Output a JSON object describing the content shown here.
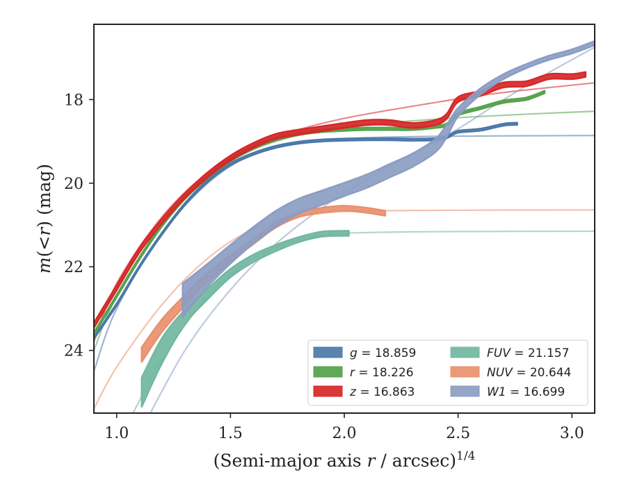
{
  "chart_data": {
    "type": "line",
    "xlabel_main": "(Semi-major axis ",
    "xlabel_var": "r",
    "xlabel_tail": " / arcsec)",
    "xlabel_sup": "1/4",
    "ylabel_m": "m",
    "ylabel_inner": "(<",
    "ylabel_r": "r",
    "ylabel_tail": ") (mag)",
    "xlim": [
      0.9,
      3.1
    ],
    "ylim": [
      25.5,
      16.2
    ],
    "y_inverted": true,
    "xticks": [
      1.0,
      1.5,
      2.0,
      2.5,
      3.0
    ],
    "xtick_labels": [
      "1.0",
      "1.5",
      "2.0",
      "2.5",
      "3.0"
    ],
    "yticks": [
      18,
      20,
      22,
      24
    ],
    "ytick_labels": [
      "18",
      "20",
      "22",
      "24"
    ],
    "grid": false,
    "legend_position": "lower-right",
    "series": [
      {
        "name": "g",
        "legend_var": "g",
        "legend_value": " = 18.859",
        "color": "#4c78a8",
        "band": [
          [
            0.9,
            23.7
          ],
          [
            1.0,
            22.9
          ],
          [
            1.1,
            22.0
          ],
          [
            1.2,
            21.2
          ],
          [
            1.3,
            20.5
          ],
          [
            1.4,
            19.95
          ],
          [
            1.5,
            19.55
          ],
          [
            1.6,
            19.3
          ],
          [
            1.7,
            19.13
          ],
          [
            1.8,
            19.03
          ],
          [
            1.9,
            18.98
          ],
          [
            2.0,
            18.96
          ],
          [
            2.1,
            18.95
          ],
          [
            2.2,
            18.95
          ],
          [
            2.3,
            18.96
          ],
          [
            2.4,
            18.95
          ],
          [
            2.45,
            18.9
          ],
          [
            2.5,
            18.77
          ],
          [
            2.6,
            18.72
          ],
          [
            2.7,
            18.6
          ],
          [
            2.76,
            18.58
          ]
        ],
        "band_width": [
          0.05,
          0.05,
          0.05,
          0.05,
          0.05,
          0.05,
          0.05,
          0.05,
          0.05,
          0.05,
          0.05,
          0.05,
          0.05,
          0.05,
          0.05,
          0.05,
          0.05,
          0.05,
          0.05,
          0.05,
          0.05
        ],
        "model": [
          [
            0.9,
            24.5
          ],
          [
            1.0,
            23.0
          ],
          [
            1.2,
            21.2
          ],
          [
            1.4,
            20.0
          ],
          [
            1.6,
            19.3
          ],
          [
            1.8,
            19.02
          ],
          [
            2.0,
            18.93
          ],
          [
            2.4,
            18.88
          ],
          [
            3.1,
            18.86
          ]
        ]
      },
      {
        "name": "r",
        "legend_var": "r",
        "legend_value": " = 18.226",
        "color": "#54a24b",
        "band": [
          [
            0.9,
            23.6
          ],
          [
            1.0,
            22.7
          ],
          [
            1.1,
            21.8
          ],
          [
            1.2,
            21.0
          ],
          [
            1.3,
            20.35
          ],
          [
            1.4,
            19.85
          ],
          [
            1.5,
            19.45
          ],
          [
            1.6,
            19.15
          ],
          [
            1.7,
            18.95
          ],
          [
            1.8,
            18.82
          ],
          [
            1.9,
            18.75
          ],
          [
            2.0,
            18.72
          ],
          [
            2.1,
            18.7
          ],
          [
            2.2,
            18.7
          ],
          [
            2.3,
            18.7
          ],
          [
            2.4,
            18.65
          ],
          [
            2.45,
            18.6
          ],
          [
            2.5,
            18.35
          ],
          [
            2.6,
            18.2
          ],
          [
            2.7,
            18.05
          ],
          [
            2.8,
            17.98
          ],
          [
            2.88,
            17.82
          ]
        ],
        "band_width": [
          0.06,
          0.06,
          0.06,
          0.06,
          0.06,
          0.06,
          0.06,
          0.06,
          0.06,
          0.06,
          0.06,
          0.06,
          0.06,
          0.06,
          0.06,
          0.06,
          0.06,
          0.06,
          0.06,
          0.06,
          0.06,
          0.06
        ],
        "model": [
          [
            0.9,
            24.0
          ],
          [
            1.0,
            22.7
          ],
          [
            1.2,
            21.0
          ],
          [
            1.4,
            19.85
          ],
          [
            1.6,
            19.2
          ],
          [
            1.8,
            18.85
          ],
          [
            2.0,
            18.65
          ],
          [
            2.4,
            18.47
          ],
          [
            2.8,
            18.35
          ],
          [
            3.1,
            18.28
          ]
        ]
      },
      {
        "name": "z",
        "legend_var": "z",
        "legend_value": " = 16.863",
        "color": "#d62728",
        "band": [
          [
            0.9,
            23.4
          ],
          [
            1.0,
            22.5
          ],
          [
            1.1,
            21.6
          ],
          [
            1.2,
            20.9
          ],
          [
            1.3,
            20.3
          ],
          [
            1.4,
            19.8
          ],
          [
            1.5,
            19.4
          ],
          [
            1.6,
            19.1
          ],
          [
            1.7,
            18.88
          ],
          [
            1.8,
            18.78
          ],
          [
            1.9,
            18.7
          ],
          [
            2.0,
            18.62
          ],
          [
            2.1,
            18.55
          ],
          [
            2.2,
            18.55
          ],
          [
            2.3,
            18.62
          ],
          [
            2.4,
            18.55
          ],
          [
            2.45,
            18.4
          ],
          [
            2.5,
            18.0
          ],
          [
            2.6,
            17.85
          ],
          [
            2.7,
            17.65
          ],
          [
            2.8,
            17.62
          ],
          [
            2.9,
            17.45
          ],
          [
            3.0,
            17.45
          ],
          [
            3.06,
            17.4
          ]
        ],
        "band_width": [
          0.12,
          0.12,
          0.12,
          0.12,
          0.12,
          0.12,
          0.12,
          0.12,
          0.12,
          0.12,
          0.12,
          0.12,
          0.12,
          0.12,
          0.12,
          0.12,
          0.12,
          0.12,
          0.12,
          0.12,
          0.12,
          0.12,
          0.12,
          0.12
        ],
        "model": [
          [
            0.9,
            23.8
          ],
          [
            1.0,
            22.4
          ],
          [
            1.2,
            20.8
          ],
          [
            1.4,
            19.75
          ],
          [
            1.6,
            19.1
          ],
          [
            1.8,
            18.72
          ],
          [
            2.0,
            18.45
          ],
          [
            2.2,
            18.25
          ],
          [
            2.4,
            18.07
          ],
          [
            2.6,
            17.9
          ],
          [
            2.8,
            17.77
          ],
          [
            3.1,
            17.6
          ]
        ]
      },
      {
        "name": "FUV",
        "legend_var": "FUV",
        "legend_value": " = 21.157",
        "color": "#72b7a1",
        "band": [
          [
            1.11,
            25.0
          ],
          [
            1.2,
            24.0
          ],
          [
            1.3,
            23.2
          ],
          [
            1.4,
            22.65
          ],
          [
            1.5,
            22.15
          ],
          [
            1.6,
            21.8
          ],
          [
            1.7,
            21.55
          ],
          [
            1.8,
            21.35
          ],
          [
            1.9,
            21.22
          ],
          [
            2.0,
            21.2
          ],
          [
            2.02,
            21.2
          ]
        ],
        "band_width": [
          0.7,
          0.6,
          0.35,
          0.25,
          0.2,
          0.18,
          0.15,
          0.12,
          0.12,
          0.12,
          0.12
        ],
        "model": [
          [
            1.0,
            26.3
          ],
          [
            1.1,
            25.2
          ],
          [
            1.2,
            24.2
          ],
          [
            1.4,
            22.7
          ],
          [
            1.6,
            21.8
          ],
          [
            1.8,
            21.35
          ],
          [
            2.0,
            21.2
          ],
          [
            2.4,
            21.16
          ],
          [
            3.1,
            21.15
          ]
        ]
      },
      {
        "name": "NUV",
        "legend_var": "NUV",
        "legend_value": " = 20.644",
        "color": "#e8906e",
        "band": [
          [
            1.11,
            24.1
          ],
          [
            1.2,
            23.4
          ],
          [
            1.3,
            22.8
          ],
          [
            1.4,
            22.25
          ],
          [
            1.5,
            21.8
          ],
          [
            1.6,
            21.4
          ],
          [
            1.7,
            21.0
          ],
          [
            1.8,
            20.75
          ],
          [
            1.9,
            20.65
          ],
          [
            2.0,
            20.6
          ],
          [
            2.1,
            20.65
          ],
          [
            2.18,
            20.72
          ]
        ],
        "band_width": [
          0.35,
          0.3,
          0.25,
          0.2,
          0.15,
          0.12,
          0.12,
          0.12,
          0.12,
          0.12,
          0.12,
          0.12
        ],
        "model": [
          [
            0.9,
            25.4
          ],
          [
            1.0,
            24.4
          ],
          [
            1.2,
            22.9
          ],
          [
            1.4,
            21.8
          ],
          [
            1.6,
            21.1
          ],
          [
            1.8,
            20.8
          ],
          [
            2.0,
            20.68
          ],
          [
            2.4,
            20.65
          ],
          [
            3.1,
            20.64
          ]
        ]
      },
      {
        "name": "W1",
        "legend_var": "W1",
        "legend_value": " = 16.699",
        "color": "#8b9dc3",
        "band": [
          [
            1.29,
            22.8
          ],
          [
            1.4,
            22.2
          ],
          [
            1.5,
            21.7
          ],
          [
            1.6,
            21.25
          ],
          [
            1.7,
            20.85
          ],
          [
            1.8,
            20.55
          ],
          [
            1.9,
            20.35
          ],
          [
            2.0,
            20.15
          ],
          [
            2.1,
            19.95
          ],
          [
            2.2,
            19.7
          ],
          [
            2.3,
            19.45
          ],
          [
            2.4,
            19.1
          ],
          [
            2.45,
            18.75
          ],
          [
            2.5,
            18.3
          ],
          [
            2.6,
            17.8
          ],
          [
            2.7,
            17.45
          ],
          [
            2.8,
            17.2
          ],
          [
            2.9,
            17.0
          ],
          [
            3.0,
            16.85
          ],
          [
            3.1,
            16.65
          ]
        ],
        "band_width": [
          0.8,
          0.55,
          0.45,
          0.4,
          0.38,
          0.36,
          0.34,
          0.32,
          0.32,
          0.32,
          0.32,
          0.32,
          0.3,
          0.2,
          0.15,
          0.12,
          0.1,
          0.1,
          0.1,
          0.1
        ],
        "model": [
          [
            1.1,
            26.0
          ],
          [
            1.3,
            24.0
          ],
          [
            1.5,
            22.55
          ],
          [
            1.7,
            21.45
          ],
          [
            1.9,
            20.6
          ],
          [
            2.1,
            19.9
          ],
          [
            2.3,
            19.3
          ],
          [
            2.5,
            18.7
          ],
          [
            2.7,
            18.0
          ],
          [
            2.9,
            17.35
          ],
          [
            3.1,
            16.75
          ]
        ]
      }
    ]
  }
}
